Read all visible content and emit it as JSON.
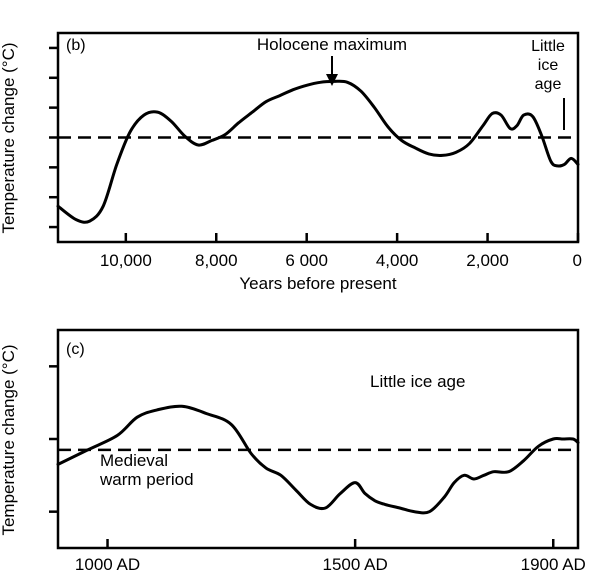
{
  "chart_data": [
    {
      "panel_label": "(b)",
      "type": "line",
      "xlabel": "Years before present",
      "ylabel": "Temperature change (°C)",
      "xlim": [
        11500,
        0
      ],
      "x_ticks": [
        10000,
        8000,
        6000,
        4000,
        2000,
        0
      ],
      "x_tick_labels": [
        "10,000",
        "8,000",
        "6 000",
        "4,000",
        "2,000",
        "0"
      ],
      "ylim": [
        -3.5,
        3.5
      ],
      "y_ticks": [
        -3,
        -2,
        -1,
        0,
        1,
        2,
        3
      ],
      "reference_line": 0,
      "annotations": [
        {
          "text": "Holocene maximum",
          "x": 5500,
          "arrow": true
        },
        {
          "text_lines": [
            "Little",
            "ice",
            "age"
          ],
          "x": 300,
          "arrow": true
        }
      ],
      "series": [
        {
          "x": [
            11500,
            11100,
            10800,
            10500,
            10200,
            9900,
            9600,
            9300,
            9000,
            8700,
            8400,
            8100,
            7800,
            7500,
            7200,
            6900,
            6600,
            6300,
            6000,
            5700,
            5400,
            5100,
            4800,
            4500,
            4200,
            3900,
            3600,
            3300,
            3000,
            2700,
            2400,
            2100,
            1900,
            1700,
            1500,
            1350,
            1200,
            1000,
            800,
            600,
            450,
            300,
            150,
            0
          ],
          "values": [
            -2.3,
            -2.75,
            -2.8,
            -2.3,
            -0.9,
            0.2,
            0.75,
            0.85,
            0.55,
            0.05,
            -0.25,
            -0.1,
            0.1,
            0.5,
            0.85,
            1.2,
            1.4,
            1.6,
            1.75,
            1.85,
            1.88,
            1.85,
            1.55,
            1.0,
            0.35,
            -0.1,
            -0.35,
            -0.55,
            -0.6,
            -0.5,
            -0.2,
            0.4,
            0.8,
            0.75,
            0.3,
            0.4,
            0.75,
            0.7,
            0.05,
            -0.8,
            -0.95,
            -0.9,
            -0.7,
            -0.9
          ]
        }
      ]
    },
    {
      "panel_label": "(c)",
      "type": "line",
      "xlabel": "",
      "ylabel": "Temperature change (°C)",
      "xlim": [
        900,
        1950
      ],
      "x_ticks": [
        1000,
        1500,
        1900
      ],
      "x_tick_labels": [
        "1000 AD",
        "1500 AD",
        "1900 AD"
      ],
      "ylim": [
        -1.5,
        1.5
      ],
      "y_ticks": [
        -1,
        0,
        1
      ],
      "reference_line": -0.15,
      "annotations": [
        {
          "text": "Little ice age"
        },
        {
          "text_lines": [
            "Medieval",
            "warm period"
          ]
        }
      ],
      "series": [
        {
          "x": [
            900,
            960,
            1020,
            1060,
            1100,
            1150,
            1200,
            1250,
            1290,
            1320,
            1350,
            1380,
            1410,
            1440,
            1470,
            1500,
            1520,
            1540,
            1560,
            1590,
            1620,
            1650,
            1680,
            1700,
            1720,
            1740,
            1760,
            1780,
            1810,
            1840,
            1870,
            1900,
            1920,
            1940,
            1950
          ],
          "values": [
            -0.35,
            -0.15,
            0.05,
            0.3,
            0.4,
            0.45,
            0.35,
            0.2,
            -0.2,
            -0.4,
            -0.5,
            -0.7,
            -0.9,
            -0.95,
            -0.75,
            -0.6,
            -0.75,
            -0.85,
            -0.9,
            -0.95,
            -1.0,
            -1.0,
            -0.8,
            -0.6,
            -0.5,
            -0.55,
            -0.5,
            -0.45,
            -0.45,
            -0.3,
            -0.1,
            0.0,
            0.0,
            0.0,
            -0.05
          ]
        }
      ]
    }
  ]
}
